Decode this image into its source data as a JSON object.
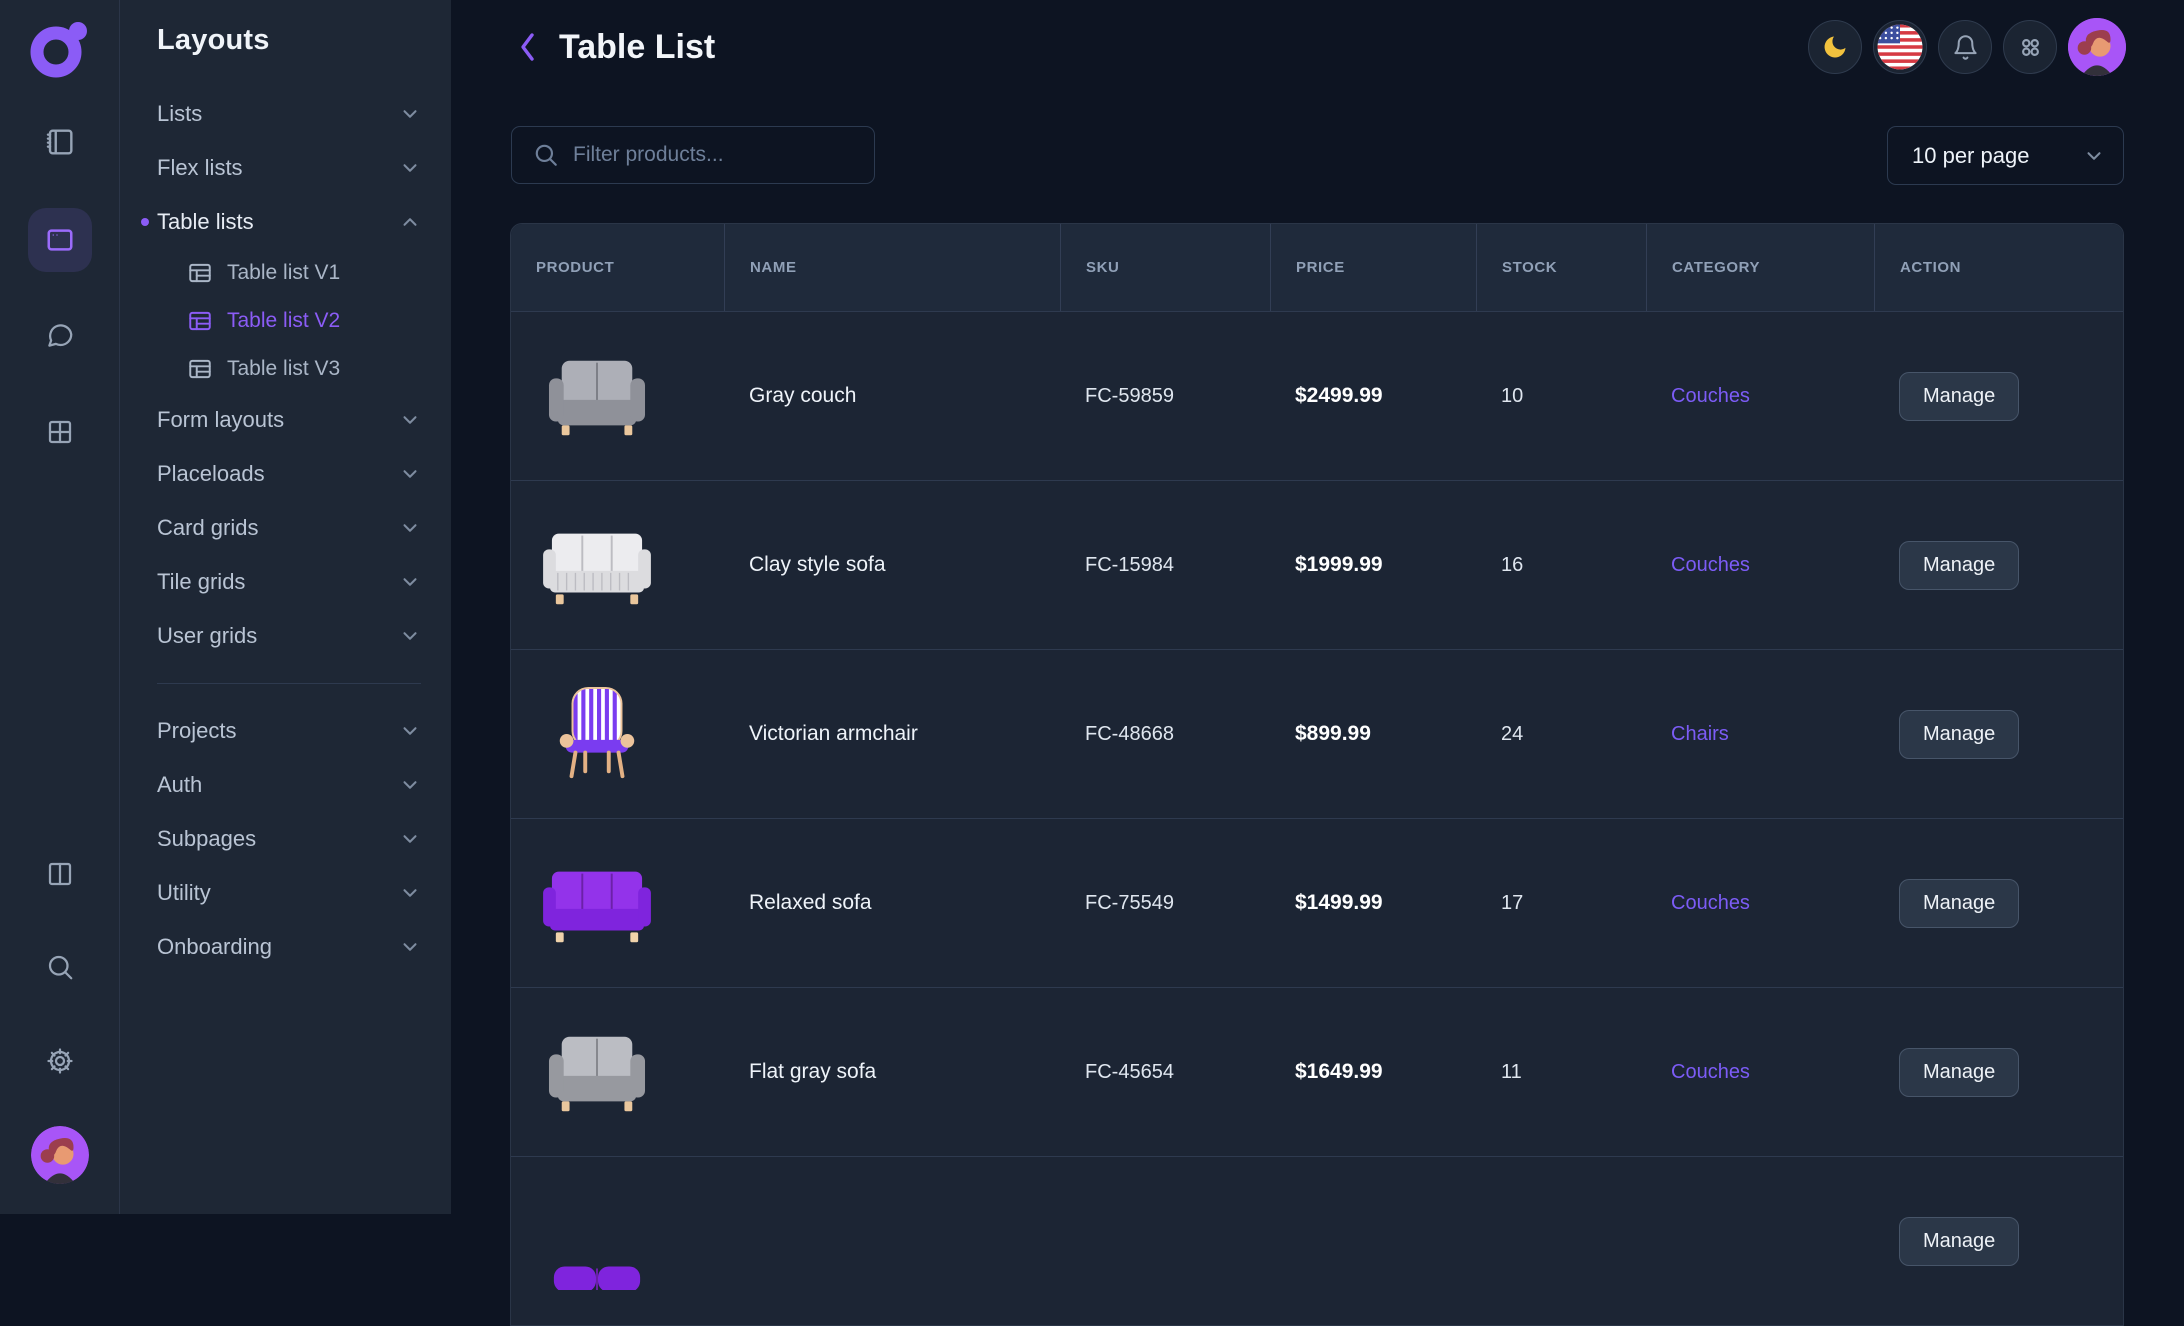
{
  "colors": {
    "page_bg": "#0d1422",
    "panel_bg": "#1e2735",
    "row_bg": "#1c2534",
    "thead_bg": "#1f2a3b",
    "accent": "#8b5cf6",
    "category": "#7c5cf6",
    "moon": "#f2c23e",
    "avatar_bg": "#a855f7",
    "btn_bg": "#2b3748",
    "btn_border": "#475569"
  },
  "rail": {
    "top": [
      {
        "name": "pages",
        "icon": "sidebar-icon",
        "active": false
      },
      {
        "name": "layouts",
        "icon": "window-icon",
        "active": true
      },
      {
        "name": "chat",
        "icon": "chat-icon",
        "active": false
      },
      {
        "name": "widgets",
        "icon": "grid-icon",
        "active": false
      }
    ],
    "bottom": [
      {
        "name": "panels",
        "icon": "columns-icon"
      },
      {
        "name": "search",
        "icon": "search-icon"
      },
      {
        "name": "settings",
        "icon": "gear-icon"
      },
      {
        "name": "profile",
        "icon": "avatar"
      }
    ]
  },
  "sidebar": {
    "title": "Layouts",
    "groups": [
      {
        "items": [
          {
            "label": "Lists",
            "chevron": "down"
          },
          {
            "label": "Flex lists",
            "chevron": "down"
          },
          {
            "label": "Table lists",
            "chevron": "up",
            "active": true,
            "children": [
              {
                "label": "Table list V1",
                "icon": "table-icon",
                "active": false
              },
              {
                "label": "Table list V2",
                "icon": "table-icon",
                "active": true
              },
              {
                "label": "Table list V3",
                "icon": "table-icon",
                "active": false
              }
            ]
          },
          {
            "label": "Form layouts",
            "chevron": "down"
          },
          {
            "label": "Placeloads",
            "chevron": "down"
          },
          {
            "label": "Card grids",
            "chevron": "down"
          },
          {
            "label": "Tile grids",
            "chevron": "down"
          },
          {
            "label": "User grids",
            "chevron": "down"
          }
        ]
      },
      {
        "items": [
          {
            "label": "Projects",
            "chevron": "down"
          },
          {
            "label": "Auth",
            "chevron": "down"
          },
          {
            "label": "Subpages",
            "chevron": "down"
          },
          {
            "label": "Utility",
            "chevron": "down"
          },
          {
            "label": "Onboarding",
            "chevron": "down"
          }
        ]
      }
    ]
  },
  "header": {
    "title": "Table List",
    "actions": [
      {
        "name": "theme-toggle",
        "icon": "moon-icon"
      },
      {
        "name": "language",
        "icon": "us-flag-icon"
      },
      {
        "name": "notifications",
        "icon": "bell-icon"
      },
      {
        "name": "apps",
        "icon": "apps-icon"
      },
      {
        "name": "profile",
        "icon": "avatar"
      }
    ]
  },
  "toolbar": {
    "filter_placeholder": "Filter products...",
    "per_page": "10 per page"
  },
  "table": {
    "columns": [
      "PRODUCT",
      "NAME",
      "SKU",
      "PRICE",
      "STOCK",
      "CATEGORY",
      "ACTION"
    ],
    "action_label": "Manage",
    "rows": [
      {
        "name": "Gray couch",
        "sku": "FC-59859",
        "price": "$2499.99",
        "stock": "10",
        "category": "Couches",
        "image": {
          "type": "loveseat",
          "body": "#8f9199",
          "cushion": "#adafb7",
          "line": "#7c7e86",
          "leg": "#eac79d"
        }
      },
      {
        "name": "Clay style sofa",
        "sku": "FC-15984",
        "price": "$1999.99",
        "stock": "16",
        "category": "Couches",
        "image": {
          "type": "sofa",
          "body": "#dcdcdf",
          "cushion": "#ececef",
          "line": "#bcbcc2",
          "leg": "#eac79d",
          "pleats": true
        }
      },
      {
        "name": "Victorian armchair",
        "sku": "FC-48668",
        "price": "$899.99",
        "stock": "24",
        "category": "Chairs",
        "image": {
          "type": "armchair",
          "frame": "#ecc39b",
          "stripe": "#7a3cf0",
          "stripe_alt": "#ffffff",
          "leg": "#e3b184"
        }
      },
      {
        "name": "Relaxed sofa",
        "sku": "FC-75549",
        "price": "$1499.99",
        "stock": "17",
        "category": "Couches",
        "image": {
          "type": "sofa",
          "body": "#7f24dd",
          "cushion": "#9333ea",
          "line": "#6b21a8",
          "leg": "#f0d3ab"
        }
      },
      {
        "name": "Flat gray sofa",
        "sku": "FC-45654",
        "price": "$1649.99",
        "stock": "11",
        "category": "Couches",
        "image": {
          "type": "loveseat",
          "body": "#97999f",
          "cushion": "#bbbdc3",
          "line": "#85878d",
          "leg": "#eac79d"
        }
      },
      {
        "name": "",
        "sku": "",
        "price": "",
        "stock": "",
        "category": "",
        "image": {
          "type": "pouf",
          "body": "#7f24dd",
          "line": "#6b21a8"
        }
      }
    ]
  }
}
